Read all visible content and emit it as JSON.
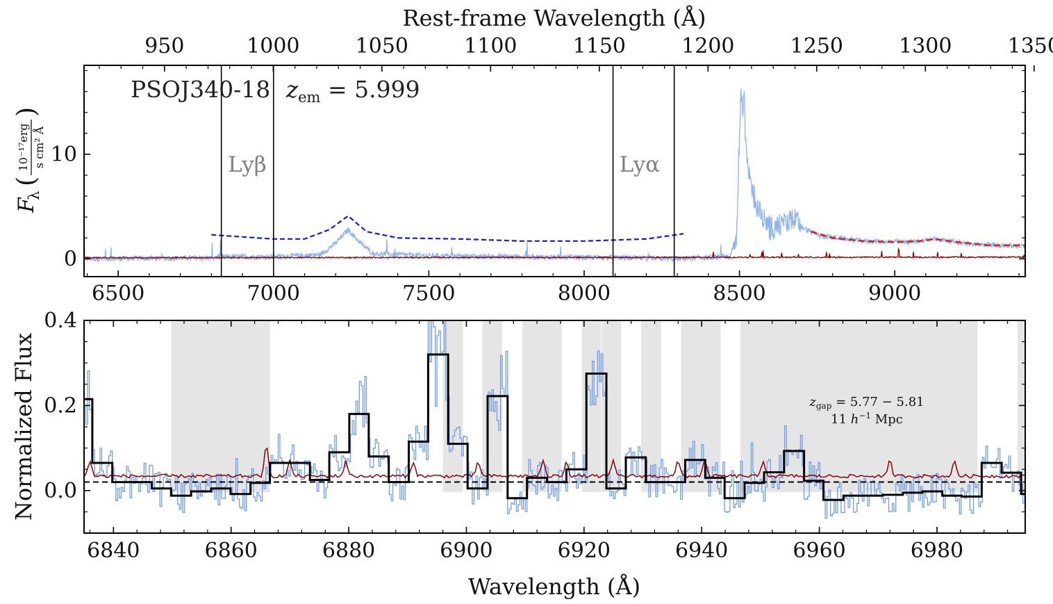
{
  "chart_data": [
    {
      "type": "line",
      "panel": "top",
      "title": "",
      "annotation": "PSOJ340-18",
      "annotation_z": "z",
      "annotation_z_sub": "em",
      "annotation_z_value": " = 5.999",
      "ylabel_main": "F",
      "ylabel_sub": "λ",
      "ylabel_unit_num": "10⁻¹⁷erg",
      "ylabel_unit_den": "s cm² Å",
      "xlabel_top": "Rest-frame Wavelength (Å)",
      "xlabel_bottom": "",
      "xlim": [
        6390,
        9420
      ],
      "ylim": [
        -1.7,
        18.5
      ],
      "z_em": 5.999,
      "xticks_bottom": [
        6500,
        7000,
        7500,
        8000,
        8500,
        9000
      ],
      "xticks_top_rest": [
        950,
        1000,
        1050,
        1100,
        1150,
        1200,
        1250,
        1300,
        1350
      ],
      "yticks": [
        0,
        10
      ],
      "vertical_lines": [
        6832,
        7000,
        8093,
        8290
      ],
      "line_labels": [
        {
          "text": "Lyβ",
          "x_center": 6916
        },
        {
          "text": "Lyα",
          "x_center": 8192
        }
      ],
      "series": [
        {
          "name": "",
          "role": "flux",
          "color": "#8fb4ef",
          "x": [
            6390,
            6800,
            6820,
            7000,
            7150,
            7200,
            7240,
            7280,
            7320,
            7500,
            7800,
            8100,
            8290,
            8470,
            8490,
            8500,
            8505,
            8510,
            8515,
            8520,
            8530,
            8560,
            8600,
            8640,
            8680,
            8700,
            8760,
            8900,
            9050,
            9130,
            9250,
            9420
          ],
          "y": [
            0,
            0.1,
            0.2,
            0.2,
            0.4,
            1.5,
            2.8,
            1.5,
            0.5,
            0.3,
            0.2,
            0.1,
            0.0,
            0.2,
            2.0,
            12.0,
            16.0,
            14.5,
            15.5,
            11.0,
            8.0,
            4.5,
            3.0,
            3.2,
            4.0,
            3.0,
            2.2,
            1.7,
            1.6,
            1.9,
            1.4,
            1.2
          ]
        },
        {
          "name": "",
          "role": "error",
          "color": "#8b0000",
          "x": [
            6390,
            9420
          ],
          "y": [
            0.05,
            0.1
          ]
        },
        {
          "name": "",
          "role": "continuum",
          "color": "#1515e6",
          "style": "dashed",
          "x": [
            6800,
            6900,
            7000,
            7100,
            7180,
            7240,
            7300,
            7400,
            7600,
            7800,
            8000,
            8200,
            8320
          ],
          "y": [
            2.3,
            2.1,
            1.9,
            1.9,
            2.8,
            4.1,
            2.6,
            2.0,
            1.9,
            1.7,
            1.7,
            1.9,
            2.4
          ]
        },
        {
          "name": "",
          "role": "fit",
          "color": "#e01b1b",
          "style": "dashed",
          "x": [
            8730,
            8800,
            8900,
            9000,
            9080,
            9130,
            9200,
            9300,
            9420
          ],
          "y": [
            2.6,
            2.0,
            1.7,
            1.6,
            1.7,
            1.9,
            1.6,
            1.3,
            1.3
          ]
        }
      ]
    },
    {
      "type": "line",
      "panel": "bottom",
      "xlabel": "Wavelength (Å)",
      "ylabel": "Normalized Flux",
      "xlim": [
        6835,
        6995
      ],
      "ylim": [
        -0.1,
        0.4
      ],
      "xticks": [
        6840,
        6860,
        6880,
        6900,
        6920,
        6940,
        6960,
        6980
      ],
      "yticks": [
        0.0,
        0.2,
        0.4
      ],
      "ytick_labels": [
        "0.0",
        "0.2",
        "0.4"
      ],
      "reference_line": 0.02,
      "annotation_line1_z": "z",
      "annotation_line1_sub": "gap",
      "annotation_line1_value": " = 5.77 − 5.81",
      "annotation_line2_prefix": "11 ",
      "annotation_line2_h": "h",
      "annotation_line2_exp": "−1",
      "annotation_line2_suffix": " Mpc",
      "shaded_regions": [
        [
          6849.8,
          6866.6
        ],
        [
          6896.0,
          6899.4
        ],
        [
          6902.7,
          6906.1
        ],
        [
          6909.5,
          6916.2
        ],
        [
          6919.6,
          6922.9
        ],
        [
          6923.0,
          6926.3
        ],
        [
          6929.7,
          6933.1
        ],
        [
          6936.5,
          6943.2
        ],
        [
          6946.6,
          6986.9
        ],
        [
          6993.7,
          6995.0
        ]
      ],
      "series": [
        {
          "name": "",
          "role": "binned",
          "color": "#000000",
          "style": "steps",
          "bin_edges": [
            6835.0,
            6836.4,
            6839.8,
            6843.1,
            6846.5,
            6849.8,
            6853.2,
            6856.6,
            6859.9,
            6863.3,
            6866.6,
            6870.0,
            6873.4,
            6876.7,
            6880.1,
            6883.4,
            6886.8,
            6890.2,
            6893.5,
            6896.9,
            6900.2,
            6903.6,
            6907.0,
            6910.3,
            6913.7,
            6917.0,
            6920.4,
            6923.8,
            6927.1,
            6930.5,
            6933.8,
            6937.2,
            6940.6,
            6943.9,
            6947.3,
            6950.6,
            6954.0,
            6957.4,
            6960.7,
            6964.1,
            6967.4,
            6970.8,
            6974.2,
            6977.5,
            6980.9,
            6984.2,
            6987.6,
            6991.0,
            6994.3,
            6995.0
          ],
          "values": [
            0.215,
            0.065,
            0.02,
            0.02,
            0.005,
            -0.012,
            -0.002,
            0.005,
            -0.008,
            0.018,
            0.065,
            0.065,
            0.025,
            0.09,
            0.18,
            0.08,
            0.02,
            0.115,
            0.32,
            0.11,
            0.005,
            0.222,
            -0.018,
            0.03,
            0.02,
            0.05,
            0.275,
            0.005,
            0.078,
            0.02,
            0.02,
            0.072,
            0.03,
            -0.018,
            0.018,
            0.043,
            0.093,
            0.023,
            -0.022,
            -0.012,
            -0.012,
            -0.01,
            -0.005,
            -0.002,
            -0.012,
            -0.014,
            0.065,
            0.042,
            -0.008
          ]
        },
        {
          "name": "",
          "role": "normalized flux",
          "color": "#6e9de8"
        },
        {
          "name": "",
          "role": "error",
          "color": "#8b0000"
        }
      ]
    }
  ]
}
